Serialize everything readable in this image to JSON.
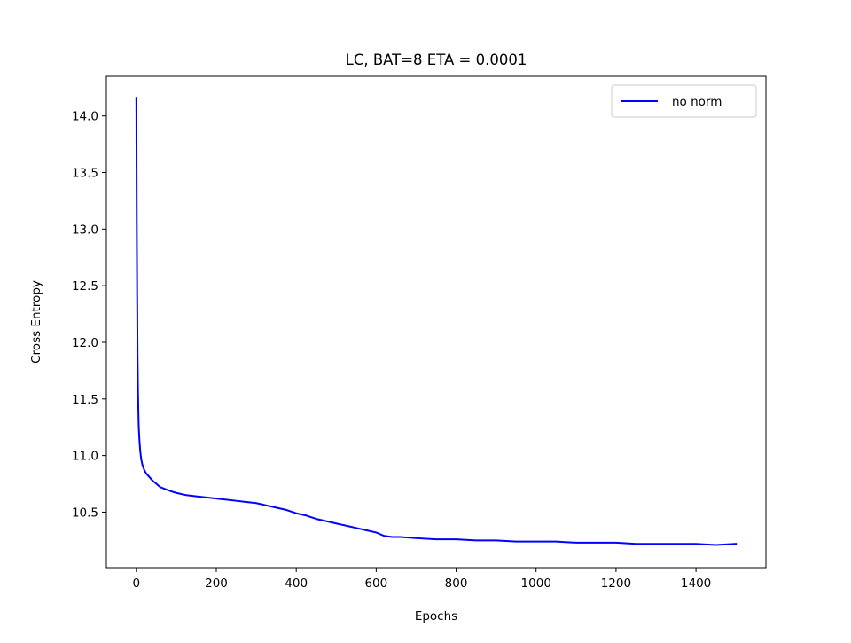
{
  "chart_data": {
    "type": "line",
    "title": "LC, BAT=8 ETA = 0.0001",
    "xlabel": "Epochs",
    "ylabel": "Cross Entropy",
    "xlim": [
      -75,
      1575
    ],
    "ylim": [
      10.01,
      14.35
    ],
    "xticks": [
      0,
      200,
      400,
      600,
      800,
      1000,
      1200,
      1400
    ],
    "xtick_labels": [
      "0",
      "200",
      "400",
      "600",
      "800",
      "1000",
      "1200",
      "1400"
    ],
    "yticks": [
      10.5,
      11.0,
      11.5,
      12.0,
      12.5,
      13.0,
      13.5,
      14.0
    ],
    "ytick_labels": [
      "10.5",
      "11.0",
      "11.5",
      "12.0",
      "12.5",
      "13.0",
      "13.5",
      "14.0"
    ],
    "grid": false,
    "legend_position": "top-right",
    "series": [
      {
        "name": "no norm",
        "color": "#0000ff",
        "x": [
          0,
          1,
          2,
          3,
          4,
          5,
          6,
          8,
          10,
          12,
          15,
          20,
          25,
          30,
          40,
          50,
          60,
          75,
          90,
          100,
          125,
          150,
          175,
          200,
          225,
          250,
          275,
          300,
          325,
          350,
          375,
          400,
          425,
          450,
          475,
          500,
          525,
          550,
          575,
          600,
          620,
          640,
          660,
          700,
          750,
          800,
          850,
          900,
          950,
          1000,
          1050,
          1100,
          1150,
          1200,
          1250,
          1300,
          1350,
          1400,
          1450,
          1500
        ],
        "y": [
          14.16,
          13.1,
          12.4,
          11.9,
          11.6,
          11.4,
          11.25,
          11.12,
          11.03,
          10.97,
          10.92,
          10.87,
          10.84,
          10.82,
          10.78,
          10.75,
          10.72,
          10.7,
          10.68,
          10.67,
          10.65,
          10.64,
          10.63,
          10.62,
          10.61,
          10.6,
          10.59,
          10.58,
          10.56,
          10.54,
          10.52,
          10.49,
          10.47,
          10.44,
          10.42,
          10.4,
          10.38,
          10.36,
          10.34,
          10.32,
          10.29,
          10.28,
          10.28,
          10.27,
          10.26,
          10.26,
          10.25,
          10.25,
          10.24,
          10.24,
          10.24,
          10.23,
          10.23,
          10.23,
          10.22,
          10.22,
          10.22,
          10.22,
          10.21,
          10.22
        ]
      }
    ]
  }
}
